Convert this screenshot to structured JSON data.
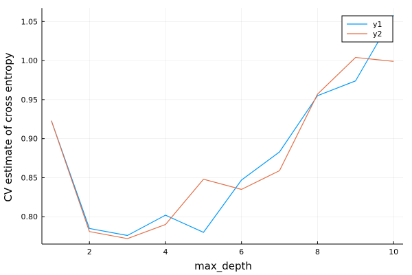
{
  "chart_data": {
    "type": "line",
    "title": "",
    "xlabel": "max_depth",
    "ylabel": "CV estimate of cross entropy",
    "xlim": [
      0.75,
      10.25
    ],
    "ylim": [
      0.765,
      1.067
    ],
    "xticks": [
      2,
      4,
      6,
      8,
      10
    ],
    "yticks": [
      0.8,
      0.85,
      0.9,
      0.95,
      1.0,
      1.05
    ],
    "ytick_labels": [
      "0.80",
      "0.85",
      "0.90",
      "0.95",
      "1.00",
      "1.05"
    ],
    "grid": true,
    "legend_position": "top-right",
    "x": [
      1,
      2,
      3,
      4,
      5,
      6,
      7,
      8,
      9,
      10
    ],
    "series": [
      {
        "name": "y1",
        "color": "#009AFA",
        "values": [
          0.923,
          0.785,
          0.776,
          0.802,
          0.78,
          0.847,
          0.883,
          0.955,
          0.974,
          1.058
        ]
      },
      {
        "name": "y2",
        "color": "#E36F47",
        "values": [
          0.923,
          0.781,
          0.772,
          0.79,
          0.848,
          0.835,
          0.859,
          0.957,
          1.004,
          0.999
        ]
      }
    ]
  }
}
